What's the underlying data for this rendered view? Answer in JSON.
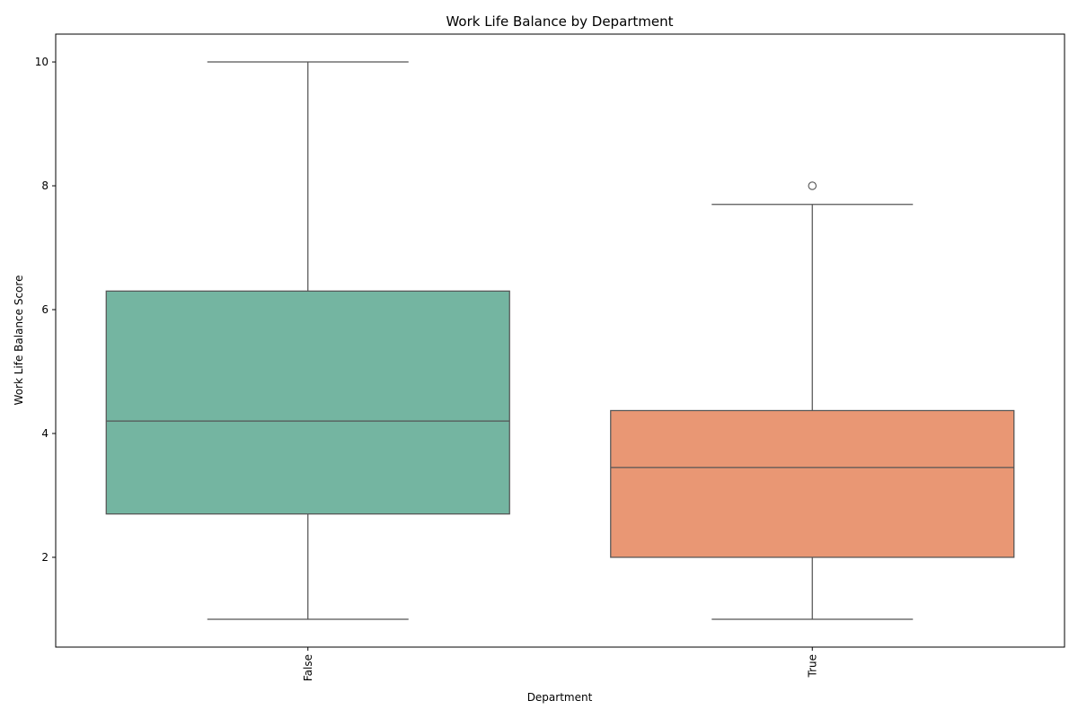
{
  "chart_data": {
    "type": "box",
    "title": "Work Life Balance by Department",
    "xlabel": "Department",
    "ylabel": "Work Life Balance Score",
    "categories": [
      "False",
      "True"
    ],
    "colors": [
      "#74b5a1",
      "#e99774"
    ],
    "line_color": "#555555",
    "ylim": [
      0.55,
      10.45
    ],
    "yticks": [
      2,
      4,
      6,
      8,
      10
    ],
    "grid": false,
    "legend": "none",
    "boxes": [
      {
        "category": "False",
        "whisker_low": 1.0,
        "q1": 2.7,
        "median": 4.2,
        "q3": 6.3,
        "whisker_high": 10.0,
        "outliers": []
      },
      {
        "category": "True",
        "whisker_low": 1.0,
        "q1": 2.0,
        "median": 3.45,
        "q3": 4.37,
        "whisker_high": 7.7,
        "outliers": [
          8.0
        ]
      }
    ]
  }
}
